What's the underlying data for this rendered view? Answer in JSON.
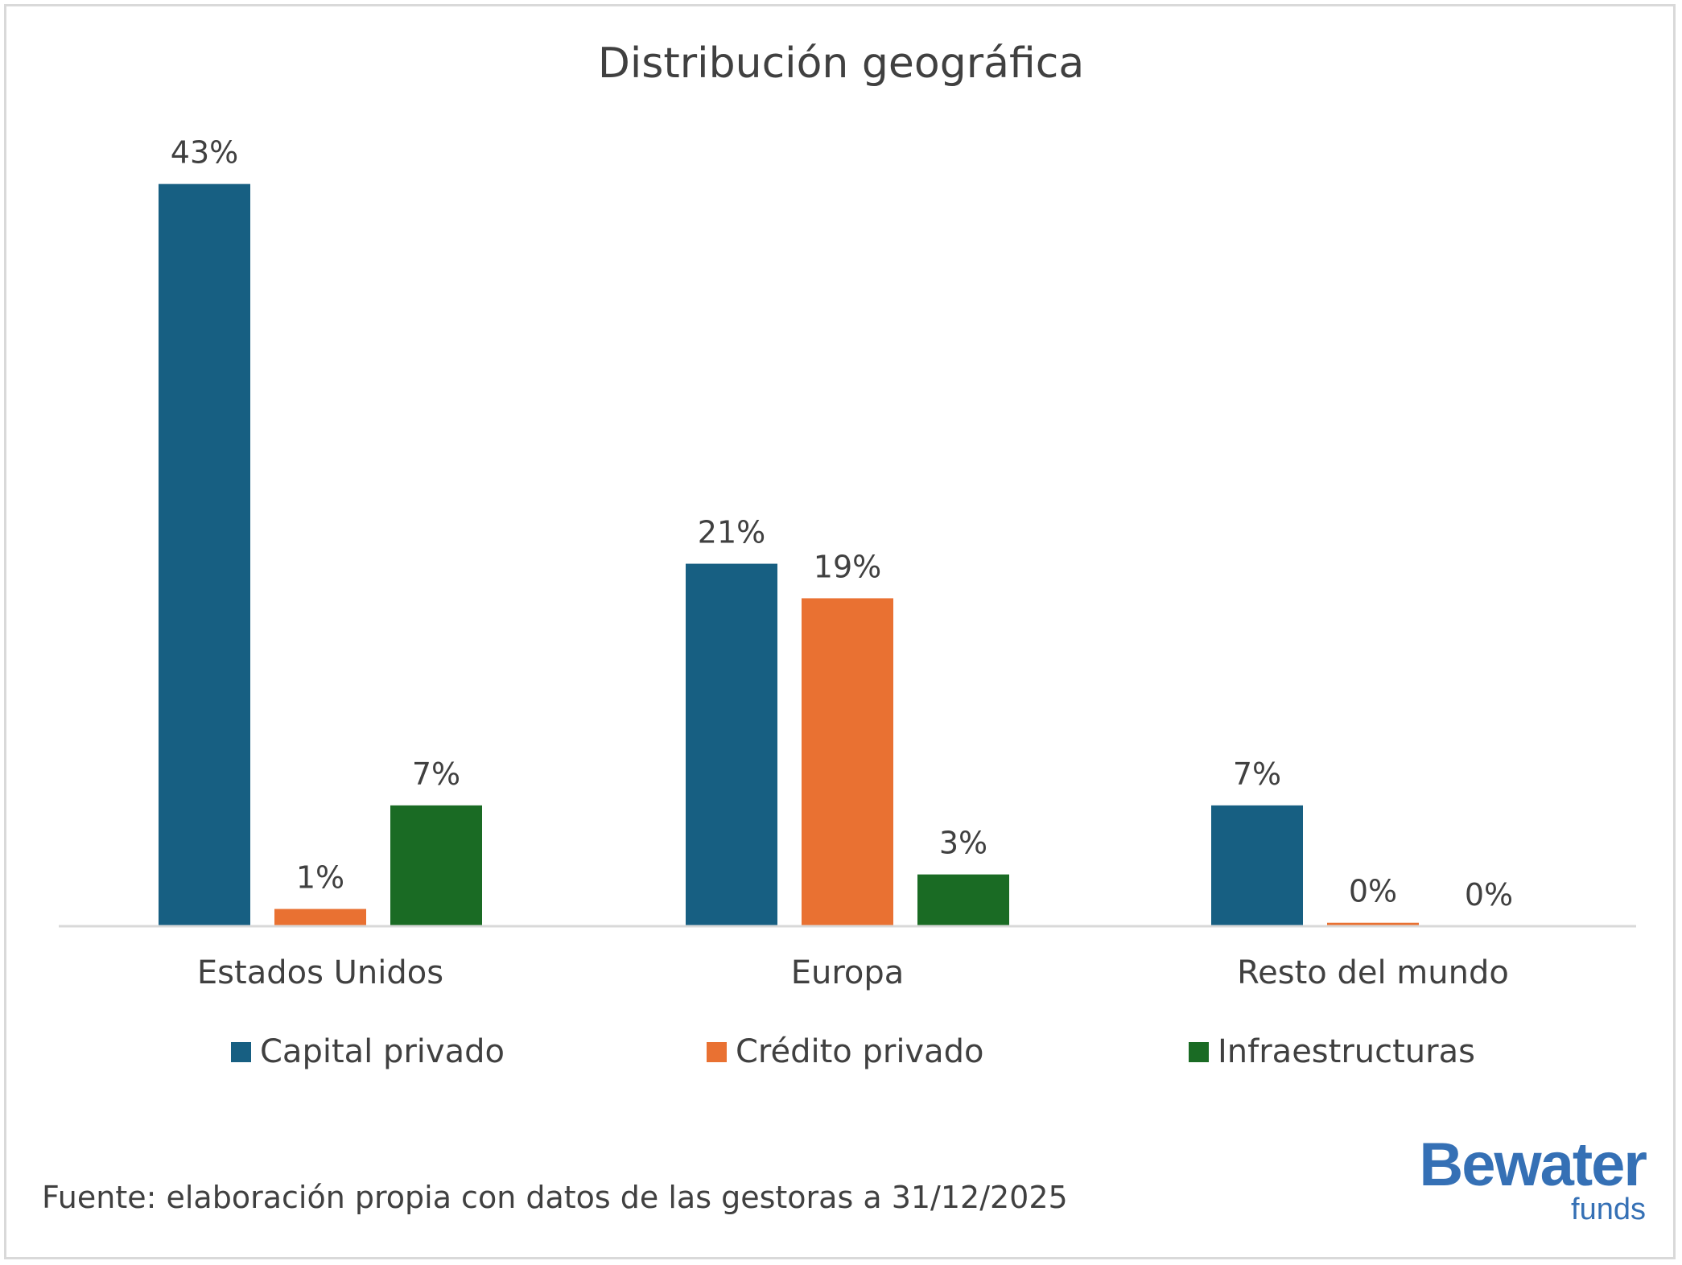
{
  "chart_data": {
    "type": "bar",
    "title": "Distribución geográfica",
    "categories": [
      "Estados Unidos",
      "Europa",
      "Resto del mundo"
    ],
    "series": [
      {
        "name": "Capital privado",
        "color": "#175f82",
        "values": [
          43,
          21,
          7
        ],
        "labels": [
          "43%",
          "21%",
          "7%"
        ]
      },
      {
        "name": "Crédito privado",
        "color": "#e97132",
        "values": [
          1,
          19,
          0.2
        ],
        "labels": [
          "1%",
          "19%",
          "0%"
        ]
      },
      {
        "name": "Infraestructuras",
        "color": "#1a6b24",
        "values": [
          7,
          3,
          0
        ],
        "labels": [
          "7%",
          "3%",
          "0%"
        ]
      }
    ],
    "xlabel": "",
    "ylabel": "",
    "ylim": [
      0,
      45
    ],
    "grid": false,
    "legend": "bottom"
  },
  "footer": "Fuente: elaboración propia con datos de las gestoras a 31/12/2025",
  "logo": {
    "name": "Bewater",
    "sub": "funds"
  }
}
